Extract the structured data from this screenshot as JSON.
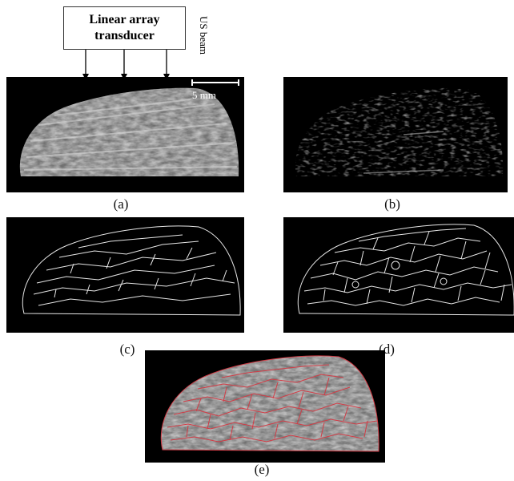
{
  "figure": {
    "transducer_label": "Linear array transducer",
    "us_beam_label": "US beam",
    "scale_bar_label": "5 mm",
    "panels": [
      {
        "caption": "(a)",
        "kind": "b-mode ultrasound image"
      },
      {
        "caption": "(b)",
        "kind": "enhanced dark image"
      },
      {
        "caption": "(c)",
        "kind": "edge map"
      },
      {
        "caption": "(d)",
        "kind": "segmentation contours"
      },
      {
        "caption": "(e)",
        "kind": "contour overlay"
      }
    ]
  },
  "colors": {
    "panel_background": "#000000",
    "tissue_gray": "#8a8a8a",
    "contour_white": "#e6e6e6",
    "overlay_red": "#d23c46"
  }
}
